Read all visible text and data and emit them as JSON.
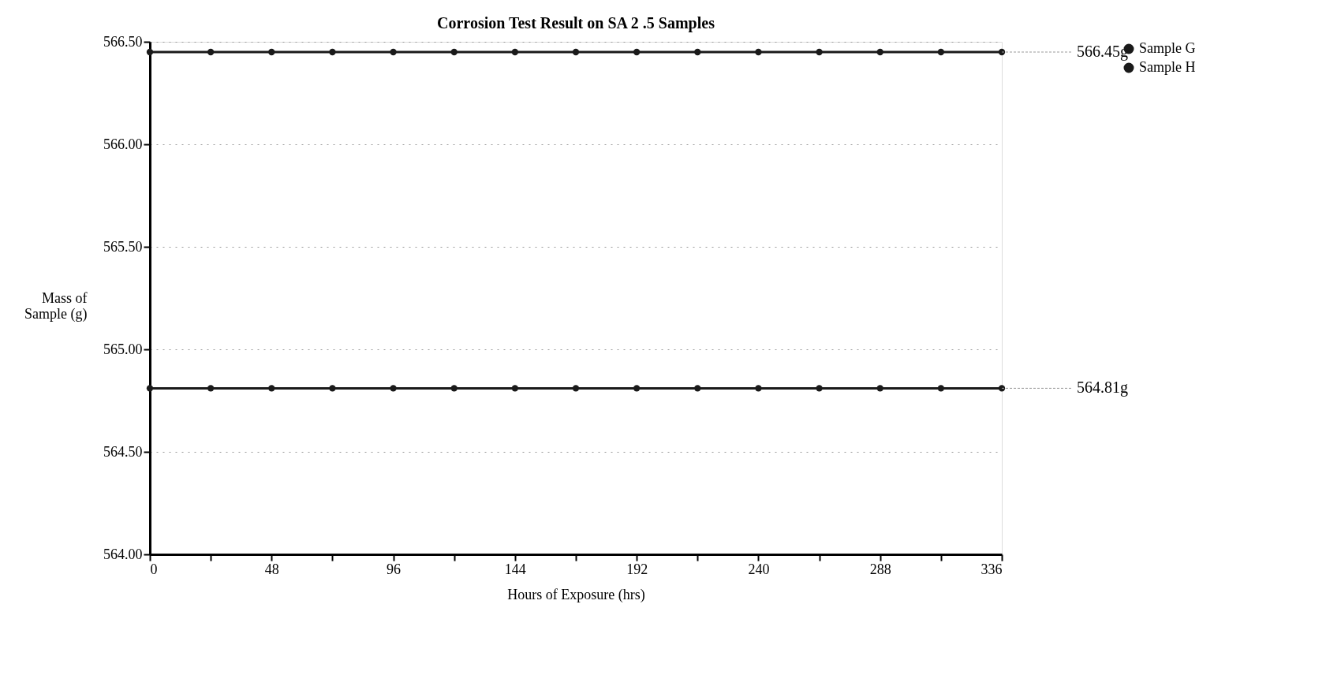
{
  "chart_data": {
    "type": "line",
    "title": "Corrosion Test Result on SA 2 .5 Samples",
    "xlabel": "Hours of Exposure (hrs)",
    "ylabel": "Mass of Sample (g)",
    "x": [
      0,
      24,
      48,
      72,
      96,
      120,
      144,
      168,
      192,
      216,
      240,
      264,
      288,
      312,
      336
    ],
    "series": [
      {
        "name": "Sample G",
        "color": "#1a1a1a",
        "values": [
          566.45,
          566.45,
          566.45,
          566.45,
          566.45,
          566.45,
          566.45,
          566.45,
          566.45,
          566.45,
          566.45,
          566.45,
          566.45,
          566.45,
          566.45
        ]
      },
      {
        "name": "Sample H",
        "color": "#1a1a1a",
        "values": [
          564.81,
          564.81,
          564.81,
          564.81,
          564.81,
          564.81,
          564.81,
          564.81,
          564.81,
          564.81,
          564.81,
          564.81,
          564.81,
          564.81,
          564.81
        ]
      }
    ],
    "xlim": [
      0,
      336
    ],
    "xticks": [
      0,
      {
        "value": 24,
        "label": null
      },
      48,
      {
        "value": 72,
        "label": null
      },
      96,
      {
        "value": 120,
        "label": null
      },
      144,
      {
        "value": 168,
        "label": null
      },
      192,
      {
        "value": 216,
        "label": null
      },
      240,
      {
        "value": 264,
        "label": null
      },
      288,
      {
        "value": 312,
        "label": null
      },
      336
    ],
    "ylim": [
      564.0,
      566.5
    ],
    "yticks": [
      {
        "value": 564.0,
        "label": "564.00"
      },
      {
        "value": 564.5,
        "label": "564.50"
      },
      {
        "value": 565.0,
        "label": "565.00"
      },
      {
        "value": 565.5,
        "label": "565.50"
      },
      {
        "value": 566.0,
        "label": "566.00"
      },
      {
        "value": 566.5,
        "label": "566.50"
      }
    ],
    "annotations": [
      {
        "text": "566.45g",
        "x": 336,
        "y": 566.45
      },
      {
        "text": "564.81g",
        "x": 336,
        "y": 564.81
      }
    ],
    "grid": "y",
    "legend": "right",
    "marker": "circle",
    "line_style": "solid"
  }
}
